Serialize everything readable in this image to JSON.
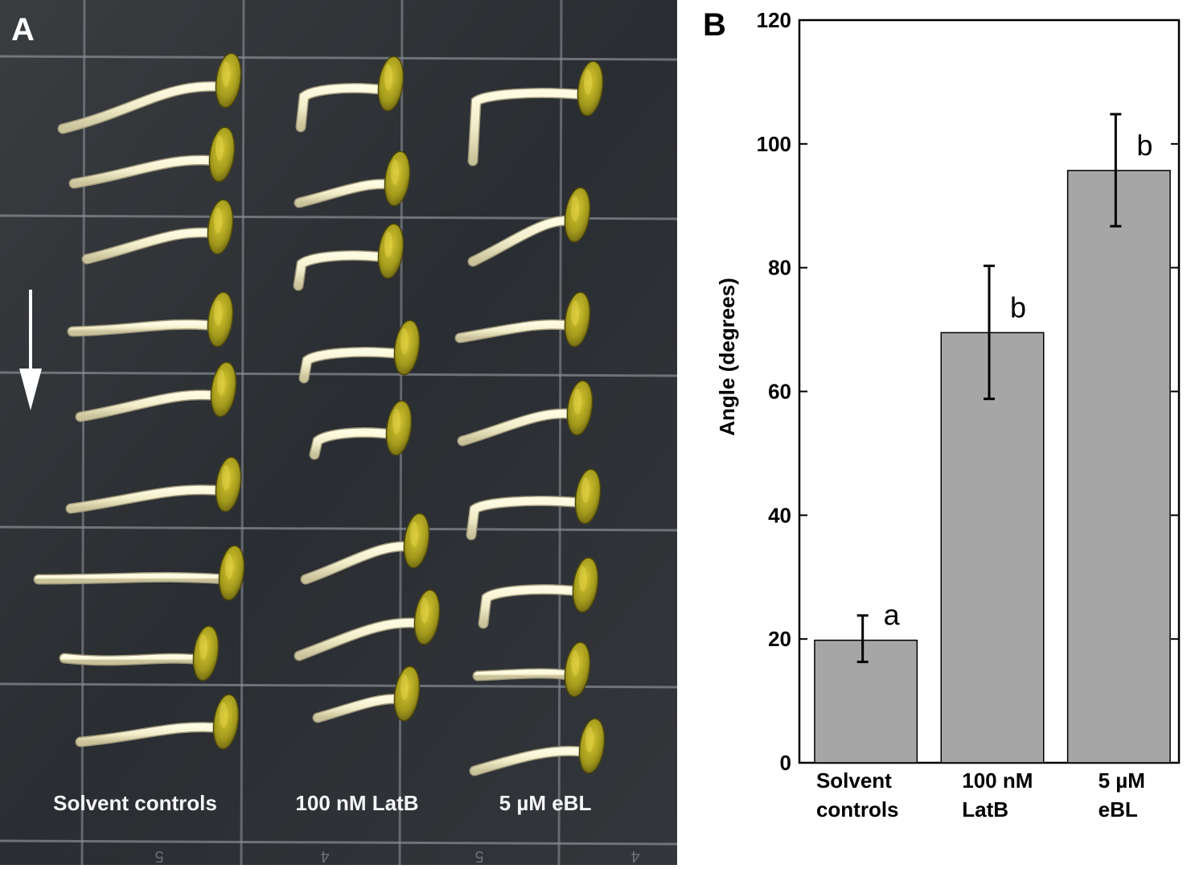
{
  "panel_a": {
    "label": "A",
    "column_labels": [
      "Solvent controls",
      "100 nM LatB",
      "5 µM eBL"
    ],
    "grid_bottom_marks": [
      "5",
      "4",
      "5",
      "4"
    ],
    "arrow": "gravity-arrow",
    "colors": {
      "background": "#2c2f33",
      "grid": "#8a8f96",
      "root": "#f2eecf",
      "seed": "#a39a1c"
    }
  },
  "panel_b": {
    "label": "B"
  },
  "chart_data": {
    "type": "bar",
    "categories": [
      "Solvent controls",
      "100 nM LatB",
      "5 µM eBL"
    ],
    "category_lines": [
      [
        "Solvent",
        "controls"
      ],
      [
        "100 nM",
        "LatB"
      ],
      [
        "5 µM",
        "eBL"
      ]
    ],
    "values": [
      19.8,
      69.5,
      95.7
    ],
    "error_low": [
      16.3,
      58.8,
      86.7
    ],
    "error_high": [
      23.8,
      80.3,
      104.8
    ],
    "significance_letters": [
      "a",
      "b",
      "b"
    ],
    "ylabel": "Angle (degrees)",
    "xlabel": "",
    "ylim": [
      0,
      120
    ],
    "yticks": [
      0,
      20,
      40,
      60,
      80,
      100,
      120
    ],
    "grid": false,
    "bar_color": "#a6a6a6"
  }
}
